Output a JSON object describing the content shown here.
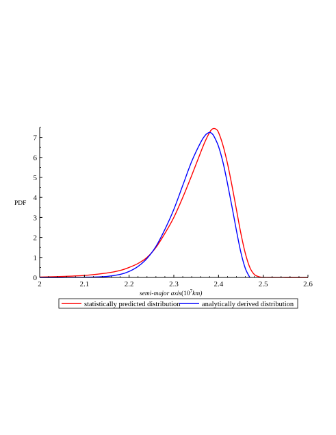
{
  "chart_data": {
    "type": "line",
    "title": "",
    "xlabel_prefix": "semi-major axis",
    "xlabel_paren_open": "(10",
    "xlabel_sup": "7",
    "xlabel_unit": "km)",
    "ylabel": "PDF",
    "xlim": [
      2.0,
      2.6
    ],
    "ylim": [
      0,
      7.5
    ],
    "xticks": [
      2,
      2.1,
      2.2,
      2.3,
      2.4,
      2.5,
      2.6
    ],
    "xtick_labels": [
      "2",
      "2.1",
      "2.2",
      "2.3",
      "2.4",
      "2.5",
      "2.6"
    ],
    "yticks": [
      0,
      1,
      2,
      3,
      4,
      5,
      6,
      7
    ],
    "ytick_labels": [
      "0",
      "1",
      "2",
      "3",
      "4",
      "5",
      "6",
      "7"
    ],
    "grid": false,
    "legend": "bottom",
    "series": [
      {
        "name": "statistically predicted distribution",
        "color": "#ff0000",
        "x": [
          2.0,
          2.05,
          2.1,
          2.15,
          2.18,
          2.2,
          2.22,
          2.24,
          2.26,
          2.28,
          2.3,
          2.32,
          2.34,
          2.36,
          2.37,
          2.38,
          2.385,
          2.39,
          2.395,
          2.4,
          2.41,
          2.42,
          2.43,
          2.44,
          2.45,
          2.46,
          2.47,
          2.48,
          2.49,
          2.5,
          2.55,
          2.6
        ],
        "y": [
          0.02,
          0.05,
          0.1,
          0.22,
          0.35,
          0.5,
          0.7,
          1.0,
          1.5,
          2.2,
          3.0,
          4.0,
          5.1,
          6.25,
          6.8,
          7.25,
          7.4,
          7.45,
          7.4,
          7.25,
          6.6,
          5.7,
          4.6,
          3.4,
          2.2,
          1.2,
          0.5,
          0.15,
          0.04,
          0.01,
          0.0,
          0.0
        ]
      },
      {
        "name": "analytically derived distribution",
        "color": "#0000ff",
        "x": [
          2.0,
          2.05,
          2.1,
          2.15,
          2.18,
          2.2,
          2.22,
          2.24,
          2.26,
          2.28,
          2.3,
          2.32,
          2.34,
          2.36,
          2.37,
          2.375,
          2.38,
          2.385,
          2.39,
          2.4,
          2.41,
          2.42,
          2.43,
          2.44,
          2.45,
          2.46,
          2.47
        ],
        "y": [
          0.0,
          0.0,
          0.01,
          0.05,
          0.15,
          0.3,
          0.55,
          0.95,
          1.55,
          2.4,
          3.4,
          4.6,
          5.8,
          6.75,
          7.1,
          7.2,
          7.25,
          7.2,
          7.05,
          6.55,
          5.75,
          4.7,
          3.55,
          2.35,
          1.25,
          0.45,
          0.0
        ]
      }
    ]
  }
}
